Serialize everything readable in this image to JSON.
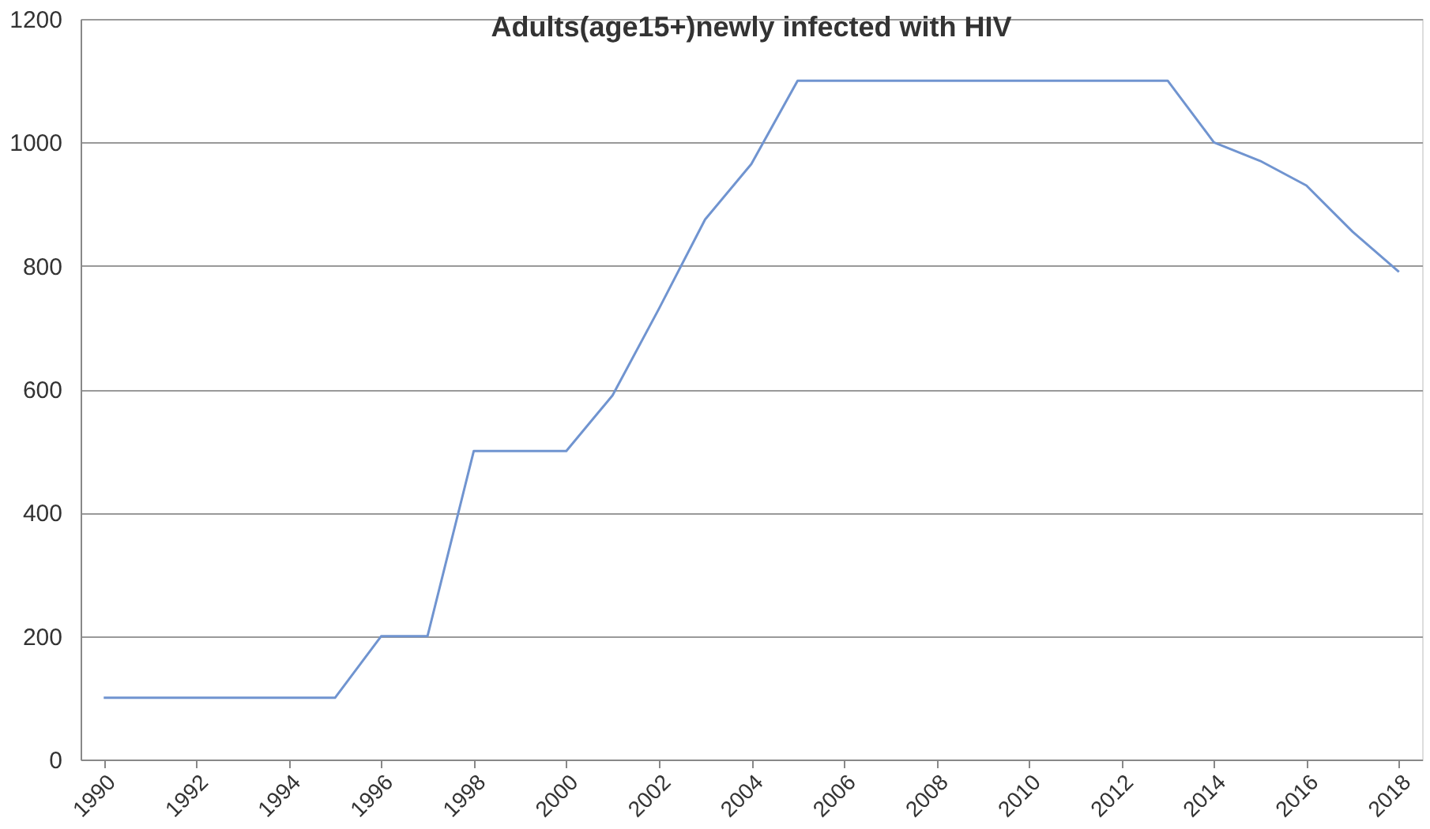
{
  "chart_data": {
    "type": "line",
    "title": "Adults(age15+)newly infected with HIV",
    "x": [
      1990,
      1991,
      1992,
      1993,
      1994,
      1995,
      1996,
      1997,
      1998,
      1999,
      2000,
      2001,
      2002,
      2003,
      2004,
      2005,
      2006,
      2007,
      2008,
      2009,
      2010,
      2011,
      2012,
      2013,
      2014,
      2015,
      2016,
      2017,
      2018
    ],
    "series": [
      {
        "color": "#7094d0",
        "values": [
          100,
          100,
          100,
          100,
          100,
          100,
          200,
          200,
          500,
          500,
          500,
          590,
          730,
          875,
          965,
          1100,
          1100,
          1100,
          1100,
          1100,
          1100,
          1100,
          1100,
          1100,
          1000,
          970,
          930,
          855,
          790
        ]
      }
    ],
    "xlim": [
      1989.5,
      2018.5
    ],
    "xticks": [
      1990,
      1992,
      1994,
      1996,
      1998,
      2000,
      2002,
      2004,
      2006,
      2008,
      2010,
      2012,
      2014,
      2016,
      2018
    ],
    "ylim": [
      0,
      1200
    ],
    "yticks": [
      0,
      200,
      400,
      600,
      800,
      1000,
      1200
    ],
    "grid": "y",
    "legend": false,
    "marker": "none",
    "line_style": "solid"
  }
}
